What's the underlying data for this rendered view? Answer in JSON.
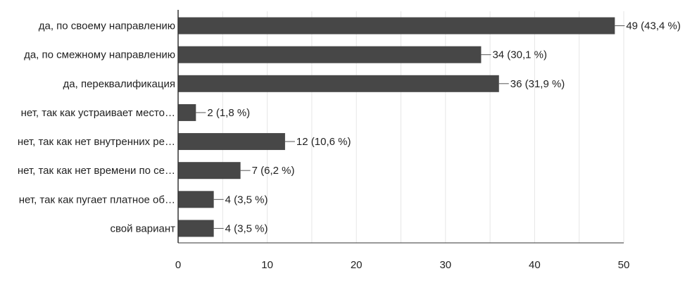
{
  "chart_data": {
    "type": "bar",
    "orientation": "horizontal",
    "categories": [
      "да, по своему направлению",
      "да, по смежному направлению",
      "да, переквалификация",
      "нет, так как устраивает место…",
      "нет, так как нет внутренних ре…",
      "нет, так как нет времени по се…",
      "нет, так как пугает платное об…",
      "свой вариант"
    ],
    "values": [
      49,
      34,
      36,
      2,
      12,
      7,
      4,
      4
    ],
    "data_labels": [
      "49 (43,4 %)",
      "34 (30,1 %)",
      "36 (31,9 %)",
      "2 (1,8 %)",
      "12 (10,6 %)",
      "7 (6,2 %)",
      "4 (3,5 %)",
      "4 (3,5 %)"
    ],
    "x_ticks": [
      0,
      10,
      20,
      30,
      40,
      50
    ],
    "xlim": [
      0,
      50
    ],
    "grid": true,
    "colors": {
      "bar": "#474747",
      "grid": "#e6e6e6",
      "axis": "#333333",
      "leader": "#555555"
    }
  }
}
